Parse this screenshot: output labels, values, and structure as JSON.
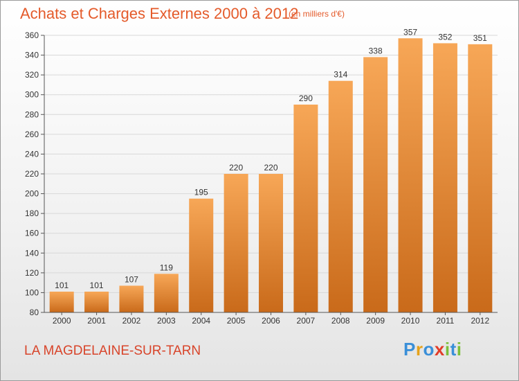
{
  "header": {
    "title": "Achats et Charges Externes 2000 à 2012",
    "subtitle": "(en milliers d'€)"
  },
  "footer": {
    "commune": "LA MAGDELAINE-SUR-TARN",
    "brand_letters": [
      {
        "char": "P",
        "color": "#3a8fd8"
      },
      {
        "char": "r",
        "color": "#e6a21a"
      },
      {
        "char": "o",
        "color": "#3a8fd8"
      },
      {
        "char": "x",
        "color": "#e23c28"
      },
      {
        "char": "i",
        "color": "#7cbf3a"
      },
      {
        "char": "t",
        "color": "#3a8fd8"
      },
      {
        "char": "i",
        "color": "#7cbf3a"
      }
    ]
  },
  "colors": {
    "bar_top": "#f7a757",
    "bar_bottom": "#c96a1a",
    "grid": "#d8d8d8",
    "axis": "#555555"
  },
  "chart_data": {
    "type": "bar",
    "title": "Achats et Charges Externes 2000 à 2012",
    "subtitle": "(en milliers d'€)",
    "categories": [
      "2000",
      "2001",
      "2002",
      "2003",
      "2004",
      "2005",
      "2006",
      "2007",
      "2008",
      "2009",
      "2010",
      "2011",
      "2012"
    ],
    "values": [
      101,
      101,
      107,
      119,
      195,
      220,
      220,
      290,
      314,
      338,
      357,
      352,
      351
    ],
    "data_labels": [
      "101",
      "101",
      "107",
      "119",
      "195",
      "220",
      "220",
      "290",
      "314",
      "338",
      "357",
      "352",
      "351"
    ],
    "ylim": [
      80,
      360
    ],
    "yticks": [
      80,
      100,
      120,
      140,
      160,
      180,
      200,
      220,
      240,
      260,
      280,
      300,
      320,
      340,
      360
    ],
    "grid": true,
    "legend": "none"
  }
}
